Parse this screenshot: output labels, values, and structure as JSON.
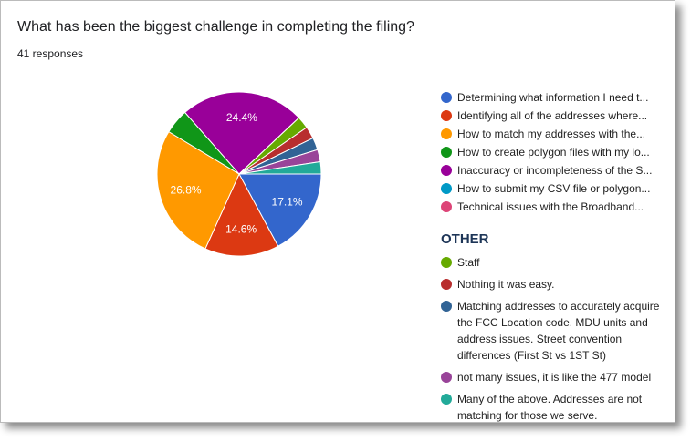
{
  "chart_data": {
    "type": "pie",
    "title": "What has been the biggest challenge in completing the filing?",
    "subtitle": "41 responses",
    "categories": [
      "Determining what information I need t...",
      "Identifying all of the addresses where...",
      "How to match my addresses with the...",
      "How to create polygon files with my lo...",
      "Inaccuracy or incompleteness of the S...",
      "How to submit my CSV file or polygon...",
      "Technical issues with the Broadband..."
    ],
    "values": [
      17.1,
      14.6,
      26.8,
      4.9,
      24.4,
      0,
      0
    ],
    "value_labels": [
      "17.1%",
      "14.6%",
      "26.8%",
      null,
      "24.4%",
      null,
      null
    ],
    "colors": [
      "#3366cc",
      "#dc3912",
      "#ff9900",
      "#109618",
      "#990099",
      "#0099c6",
      "#dd4477"
    ],
    "other": {
      "title": "OTHER",
      "categories": [
        "Staff",
        "Nothing it was easy.",
        "Matching addresses to accurately acquire the FCC Location code. MDU units and address issues. Street convention differences (First St vs 1ST St)",
        "not many issues, it is like the 477 model",
        "Many of the above. Addresses are not matching for those we serve."
      ],
      "values": [
        2.4,
        2.4,
        2.4,
        2.4,
        2.4
      ],
      "colors": [
        "#66aa00",
        "#b82e2e",
        "#316395",
        "#994499",
        "#22aa99"
      ]
    }
  }
}
